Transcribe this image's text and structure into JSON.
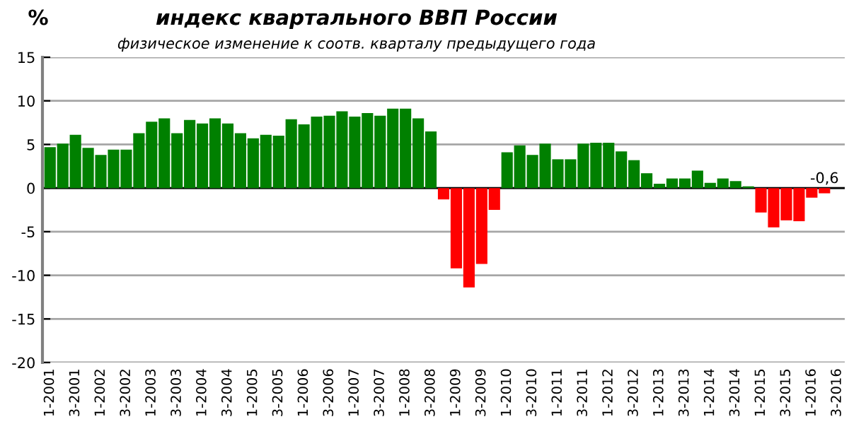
{
  "chart_data": {
    "type": "bar",
    "title": "индекс квартального ВВП России",
    "subtitle": "физическое изменение к соотв. кварталу предыдущего года",
    "ylabel": "%",
    "categories": [
      "1-2001",
      null,
      "3-2001",
      null,
      "1-2002",
      null,
      "3-2002",
      null,
      "1-2003",
      null,
      "3-2003",
      null,
      "1-2004",
      null,
      "3-2004",
      null,
      "1-2005",
      null,
      "3-2005",
      null,
      "1-2006",
      null,
      "3-2006",
      null,
      "1-2007",
      null,
      "3-2007",
      null,
      "1-2008",
      null,
      "3-2008",
      null,
      "1-2009",
      null,
      "3-2009",
      null,
      "1-2010",
      null,
      "3-2010",
      null,
      "1-2011",
      null,
      "3-2011",
      null,
      "1-2012",
      null,
      "3-2012",
      null,
      "1-2013",
      null,
      "3-2013",
      null,
      "1-2014",
      null,
      "3-2014",
      null,
      "1-2015",
      null,
      "3-2015",
      null,
      "1-2016",
      null,
      "3-2016"
    ],
    "values": [
      4.7,
      5.1,
      6.1,
      4.6,
      3.8,
      4.4,
      4.4,
      6.3,
      7.6,
      8.0,
      6.3,
      7.8,
      7.4,
      8.0,
      7.4,
      6.3,
      5.7,
      6.1,
      6.0,
      7.9,
      7.3,
      8.2,
      8.3,
      8.8,
      8.2,
      8.6,
      8.3,
      9.1,
      9.1,
      8.0,
      6.5,
      -1.3,
      -9.2,
      -11.4,
      -8.7,
      -2.5,
      4.1,
      4.9,
      3.8,
      5.1,
      3.3,
      3.3,
      5.1,
      5.2,
      5.2,
      4.2,
      3.2,
      1.7,
      0.5,
      1.1,
      1.1,
      2.0,
      0.6,
      1.1,
      0.8,
      0.2,
      -2.8,
      -4.5,
      -3.7,
      -3.8,
      -1.1,
      -0.6,
      null
    ],
    "colors": [
      "#008000",
      "#008000",
      "#008000",
      "#008000",
      "#008000",
      "#008000",
      "#008000",
      "#008000",
      "#008000",
      "#008000",
      "#008000",
      "#008000",
      "#008000",
      "#008000",
      "#008000",
      "#008000",
      "#008000",
      "#008000",
      "#008000",
      "#008000",
      "#008000",
      "#008000",
      "#008000",
      "#008000",
      "#008000",
      "#008000",
      "#008000",
      "#008000",
      "#008000",
      "#008000",
      "#008000",
      "#ff0000",
      "#ff0000",
      "#ff0000",
      "#ff0000",
      "#ff0000",
      "#008000",
      "#008000",
      "#008000",
      "#008000",
      "#008000",
      "#008000",
      "#008000",
      "#008000",
      "#008000",
      "#008000",
      "#008000",
      "#008000",
      "#008000",
      "#008000",
      "#008000",
      "#008000",
      "#008000",
      "#008000",
      "#008000",
      "#008000",
      "#ff0000",
      "#ff0000",
      "#ff0000",
      "#ff0000",
      "#ff0000",
      "#ff0000",
      null
    ],
    "value_labels": [
      null,
      null,
      null,
      null,
      null,
      null,
      null,
      null,
      null,
      null,
      null,
      null,
      null,
      null,
      null,
      null,
      null,
      null,
      null,
      null,
      null,
      null,
      null,
      null,
      null,
      null,
      null,
      null,
      null,
      null,
      null,
      null,
      null,
      null,
      null,
      null,
      null,
      null,
      null,
      null,
      null,
      null,
      null,
      null,
      null,
      null,
      null,
      null,
      null,
      null,
      null,
      null,
      null,
      null,
      null,
      null,
      null,
      null,
      null,
      null,
      null,
      "-0,6",
      null
    ],
    "ylim": [
      -20,
      15
    ],
    "yticks": [
      -20,
      -15,
      -10,
      -5,
      0,
      5,
      10,
      15
    ],
    "grid": "y"
  }
}
